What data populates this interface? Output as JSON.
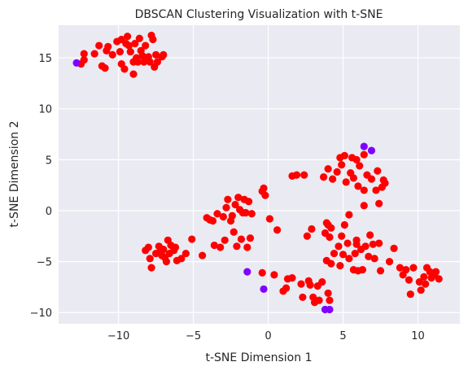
{
  "chart_data": {
    "type": "scatter",
    "title": "DBSCAN Clustering Visualization with t-SNE",
    "xlabel": "t-SNE Dimension 1",
    "ylabel": "t-SNE Dimension 2",
    "xlim": [
      -14,
      12.8
    ],
    "ylim": [
      -11.1,
      18.2
    ],
    "xticks": [
      -10,
      -5,
      0,
      5,
      10
    ],
    "yticks": [
      -10,
      -5,
      0,
      5,
      10,
      15
    ],
    "grid": true,
    "legend": "none",
    "colors": {
      "plot_background": "#eaeaf2",
      "grid": "#ffffff",
      "cluster": "#ff0000",
      "noise": "#8000ff"
    },
    "series": [
      {
        "role": "cluster",
        "points": [
          [
            -12.5,
            14.4
          ],
          [
            -12.3,
            15.4
          ],
          [
            -12.3,
            14.8
          ],
          [
            -11.6,
            15.4
          ],
          [
            -11.3,
            16.2
          ],
          [
            -11.1,
            14.2
          ],
          [
            -10.9,
            14.0
          ],
          [
            -10.8,
            15.7
          ],
          [
            -10.7,
            16.1
          ],
          [
            -10.4,
            15.3
          ],
          [
            -10.1,
            16.6
          ],
          [
            -9.8,
            16.8
          ],
          [
            -9.9,
            15.6
          ],
          [
            -9.8,
            14.4
          ],
          [
            -9.6,
            13.9
          ],
          [
            -9.5,
            16.4
          ],
          [
            -9.4,
            17.1
          ],
          [
            -9.3,
            16.2
          ],
          [
            -9.2,
            15.6
          ],
          [
            -9.0,
            14.6
          ],
          [
            -9.0,
            13.4
          ],
          [
            -8.9,
            16.4
          ],
          [
            -8.8,
            15.0
          ],
          [
            -8.7,
            14.6
          ],
          [
            -8.6,
            16.9
          ],
          [
            -8.5,
            15.7
          ],
          [
            -8.4,
            15.2
          ],
          [
            -8.3,
            14.6
          ],
          [
            -8.2,
            16.2
          ],
          [
            -8.0,
            15.1
          ],
          [
            -7.9,
            14.6
          ],
          [
            -7.8,
            17.2
          ],
          [
            -7.7,
            16.8
          ],
          [
            -7.6,
            14.1
          ],
          [
            -7.5,
            15.3
          ],
          [
            -7.4,
            14.6
          ],
          [
            -7.1,
            15.1
          ],
          [
            -7.0,
            15.3
          ],
          [
            -8.2,
            -3.9
          ],
          [
            -8.0,
            -3.6
          ],
          [
            -7.9,
            -4.7
          ],
          [
            -7.8,
            -5.6
          ],
          [
            -7.5,
            -4.2
          ],
          [
            -7.3,
            -3.5
          ],
          [
            -7.2,
            -4.0
          ],
          [
            -7.1,
            -4.4
          ],
          [
            -7.0,
            -3.8
          ],
          [
            -6.9,
            -4.6
          ],
          [
            -6.8,
            -5.0
          ],
          [
            -6.7,
            -2.9
          ],
          [
            -6.6,
            -4.2
          ],
          [
            -6.5,
            -3.4
          ],
          [
            -6.3,
            -3.9
          ],
          [
            -6.2,
            -3.6
          ],
          [
            -6.1,
            -4.9
          ],
          [
            -5.8,
            -4.7
          ],
          [
            -5.5,
            -4.2
          ],
          [
            -5.1,
            -2.8
          ],
          [
            -4.4,
            -4.4
          ],
          [
            -4.1,
            -0.7
          ],
          [
            -3.9,
            -0.9
          ],
          [
            -3.7,
            -1.0
          ],
          [
            -3.6,
            -3.4
          ],
          [
            -3.4,
            -0.3
          ],
          [
            -3.2,
            -3.6
          ],
          [
            -3.0,
            -0.6
          ],
          [
            -2.9,
            -2.9
          ],
          [
            -2.8,
            0.3
          ],
          [
            -2.7,
            1.1
          ],
          [
            -2.5,
            -1.0
          ],
          [
            -2.4,
            -0.5
          ],
          [
            -2.3,
            -2.1
          ],
          [
            -2.2,
            0.6
          ],
          [
            -2.1,
            -3.5
          ],
          [
            -2.0,
            1.3
          ],
          [
            -1.9,
            0.1
          ],
          [
            -1.8,
            -2.8
          ],
          [
            -1.7,
            -0.2
          ],
          [
            -1.6,
            1.1
          ],
          [
            -1.5,
            -0.2
          ],
          [
            -1.4,
            -3.6
          ],
          [
            -1.3,
            0.9
          ],
          [
            -1.2,
            -2.7
          ],
          [
            -1.1,
            -0.3
          ],
          [
            -0.4,
            1.9
          ],
          [
            -0.3,
            2.2
          ],
          [
            -0.2,
            1.5
          ],
          [
            0.1,
            -0.8
          ],
          [
            0.6,
            -1.9
          ],
          [
            -0.4,
            -6.1
          ],
          [
            0.4,
            -6.3
          ],
          [
            1.0,
            -7.9
          ],
          [
            1.2,
            -7.6
          ],
          [
            1.3,
            -6.7
          ],
          [
            1.6,
            -6.6
          ],
          [
            1.6,
            3.4
          ],
          [
            1.9,
            3.5
          ],
          [
            2.2,
            -7.2
          ],
          [
            2.3,
            -8.5
          ],
          [
            2.4,
            3.5
          ],
          [
            2.6,
            -2.5
          ],
          [
            2.7,
            -6.9
          ],
          [
            2.8,
            -7.3
          ],
          [
            2.9,
            -1.8
          ],
          [
            3.0,
            -8.5
          ],
          [
            3.1,
            -9.0
          ],
          [
            3.3,
            -7.4
          ],
          [
            3.4,
            -8.8
          ],
          [
            3.6,
            -7.0
          ],
          [
            3.7,
            3.3
          ],
          [
            3.8,
            -2.2
          ],
          [
            3.9,
            -1.2
          ],
          [
            3.9,
            -4.9
          ],
          [
            4.0,
            -1.4
          ],
          [
            4.0,
            4.1
          ],
          [
            4.0,
            -8.1
          ],
          [
            4.1,
            -8.8
          ],
          [
            4.1,
            -2.6
          ],
          [
            4.2,
            -1.7
          ],
          [
            4.3,
            3.1
          ],
          [
            4.4,
            -4.2
          ],
          [
            4.6,
            3.8
          ],
          [
            4.7,
            -3.5
          ],
          [
            4.8,
            -5.4
          ],
          [
            4.8,
            5.2
          ],
          [
            4.9,
            4.5
          ],
          [
            5.0,
            -4.3
          ],
          [
            5.1,
            -1.4
          ],
          [
            5.2,
            2.8
          ],
          [
            5.3,
            -3.2
          ],
          [
            5.4,
            -4.7
          ],
          [
            5.5,
            3.7
          ],
          [
            5.6,
            5.2
          ],
          [
            5.7,
            -5.8
          ],
          [
            5.7,
            3.2
          ],
          [
            5.8,
            -4.2
          ],
          [
            5.9,
            -2.9
          ],
          [
            6.0,
            2.4
          ],
          [
            6.1,
            4.4
          ],
          [
            6.2,
            -3.8
          ],
          [
            6.3,
            -5.8
          ],
          [
            6.4,
            2.0
          ],
          [
            6.5,
            -3.5
          ],
          [
            6.6,
            3.5
          ],
          [
            6.7,
            -4.5
          ],
          [
            6.8,
            -2.4
          ],
          [
            6.9,
            3.1
          ],
          [
            7.0,
            -3.3
          ],
          [
            7.1,
            -4.7
          ],
          [
            7.2,
            2.0
          ],
          [
            7.3,
            3.9
          ],
          [
            7.4,
            -3.2
          ],
          [
            7.5,
            -5.9
          ],
          [
            7.6,
            2.3
          ],
          [
            7.7,
            3.0
          ],
          [
            7.8,
            2.7
          ],
          [
            8.1,
            -5.0
          ],
          [
            8.4,
            -3.7
          ],
          [
            8.8,
            -5.6
          ],
          [
            9.0,
            -6.3
          ],
          [
            9.2,
            -5.8
          ],
          [
            9.4,
            -6.8
          ],
          [
            9.5,
            -8.2
          ],
          [
            9.7,
            -5.6
          ],
          [
            10.1,
            -7.0
          ],
          [
            10.2,
            -7.8
          ],
          [
            10.4,
            -6.5
          ],
          [
            10.5,
            -7.2
          ],
          [
            10.6,
            -5.6
          ],
          [
            10.8,
            -6.0
          ],
          [
            11.1,
            -6.3
          ],
          [
            11.2,
            -6.0
          ],
          [
            11.4,
            -6.7
          ],
          [
            10.9,
            -6.6
          ],
          [
            6.4,
            0.5
          ],
          [
            7.4,
            0.7
          ],
          [
            5.4,
            -0.4
          ],
          [
            5.9,
            5.0
          ],
          [
            6.4,
            5.5
          ],
          [
            4.2,
            -5.2
          ],
          [
            6.0,
            -5.9
          ],
          [
            5.1,
            5.4
          ],
          [
            5.9,
            -3.3
          ],
          [
            4.9,
            -2.5
          ]
        ]
      },
      {
        "role": "noise",
        "points": [
          [
            -12.8,
            14.5
          ],
          [
            6.4,
            6.3
          ],
          [
            6.9,
            5.9
          ],
          [
            -1.4,
            -6.0
          ],
          [
            -0.3,
            -7.7
          ],
          [
            3.8,
            -9.7
          ],
          [
            4.1,
            -9.7
          ]
        ]
      }
    ]
  }
}
